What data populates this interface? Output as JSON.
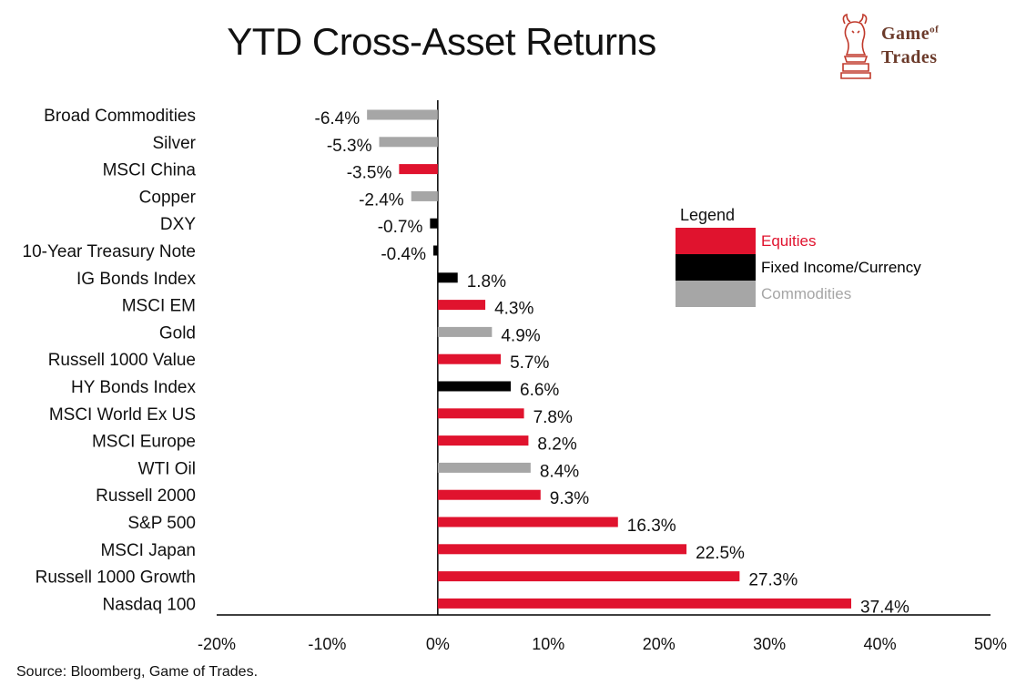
{
  "title": "YTD Cross-Asset Returns",
  "logo": {
    "line1": "Game",
    "line1_small": "of",
    "line2": "Trades"
  },
  "source": "Source: Bloomberg, Game of Trades.",
  "colors": {
    "equities": "#e0132e",
    "fixed_income": "#000000",
    "commodities": "#a6a6a6"
  },
  "legend": {
    "title": "Legend",
    "items": [
      {
        "label": "Equities",
        "group": "equities",
        "text_color": "#e0132e"
      },
      {
        "label": "Fixed Income/Currency",
        "group": "fixed_income",
        "text_color": "#000000"
      },
      {
        "label": "Commodities",
        "group": "commodities",
        "text_color": "#a6a6a6"
      }
    ]
  },
  "chart_data": {
    "type": "bar",
    "orientation": "horizontal",
    "title": "YTD Cross-Asset Returns",
    "xlabel": "",
    "ylabel": "",
    "xlim": [
      -20,
      50
    ],
    "xticks": [
      -20,
      -10,
      0,
      10,
      20,
      30,
      40,
      50
    ],
    "xtick_labels": [
      "-20%",
      "-10%",
      "0%",
      "10%",
      "20%",
      "30%",
      "40%",
      "50%"
    ],
    "categories": [
      "Broad Commodities",
      "Silver",
      "MSCI China",
      "Copper",
      "DXY",
      "10-Year Treasury Note",
      "IG Bonds Index",
      "MSCI EM",
      "Gold",
      "Russell 1000 Value",
      "HY Bonds Index",
      "MSCI World Ex US",
      "MSCI Europe",
      "WTI Oil",
      "Russell 2000",
      "S&P 500",
      "MSCI Japan",
      "Russell 1000 Growth",
      "Nasdaq 100"
    ],
    "values": [
      -6.4,
      -5.3,
      -3.5,
      -2.4,
      -0.7,
      -0.4,
      1.8,
      4.3,
      4.9,
      5.7,
      6.6,
      7.8,
      8.2,
      8.4,
      9.3,
      16.3,
      22.5,
      27.3,
      37.4
    ],
    "value_labels": [
      "-6.4%",
      "-5.3%",
      "-3.5%",
      "-2.4%",
      "-0.7%",
      "-0.4%",
      "1.8%",
      "4.3%",
      "4.9%",
      "5.7%",
      "6.6%",
      "7.8%",
      "8.2%",
      "8.4%",
      "9.3%",
      "16.3%",
      "22.5%",
      "27.3%",
      "37.4%"
    ],
    "groups": [
      "commodities",
      "commodities",
      "equities",
      "commodities",
      "fixed_income",
      "fixed_income",
      "fixed_income",
      "equities",
      "commodities",
      "equities",
      "fixed_income",
      "equities",
      "equities",
      "commodities",
      "equities",
      "equities",
      "equities",
      "equities",
      "equities"
    ],
    "grid": false,
    "legend_position": "right"
  }
}
